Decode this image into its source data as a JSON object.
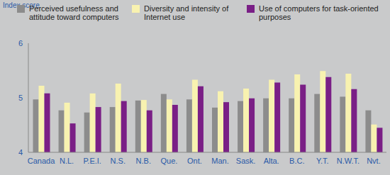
{
  "chart_data": {
    "type": "bar",
    "y_label": "Index score",
    "categories": [
      "Canada",
      "N.L.",
      "P.E.I.",
      "N.S.",
      "N.B.",
      "Que.",
      "Ont.",
      "Man.",
      "Sask.",
      "Alta.",
      "B.C.",
      "Y.T.",
      "N.W.T.",
      "Nvt."
    ],
    "series": [
      {
        "name": "Perceived usefulness and attitude toward computers",
        "color": "#8c8c8c",
        "values": [
          4.97,
          4.77,
          4.73,
          4.83,
          4.95,
          5.07,
          4.97,
          4.82,
          4.94,
          4.99,
          4.99,
          5.07,
          5.02,
          4.77
        ]
      },
      {
        "name": "Diversity and intensity of Internet use",
        "color": "#f8f2b0",
        "values": [
          5.22,
          4.91,
          5.08,
          5.26,
          4.96,
          4.97,
          5.33,
          5.12,
          5.17,
          5.33,
          5.43,
          5.49,
          5.44,
          4.51
        ]
      },
      {
        "name": "Use of computers for task-oriented purposes",
        "color": "#7a1f86",
        "values": [
          5.08,
          4.53,
          4.83,
          4.94,
          4.77,
          4.87,
          5.21,
          4.92,
          4.99,
          5.28,
          5.24,
          5.38,
          5.16,
          4.45
        ]
      }
    ],
    "ylim": [
      4,
      6
    ],
    "yticks": [
      4,
      5,
      6
    ],
    "grid": false,
    "legend": "top"
  }
}
